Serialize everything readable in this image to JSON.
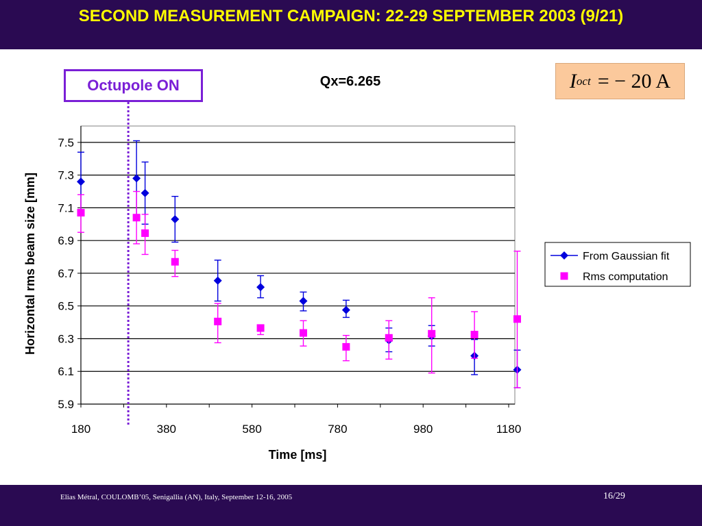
{
  "slide": {
    "title": "SECOND MEASUREMENT CAMPAIGN: 22-29 SEPTEMBER 2003 (9/21)",
    "footer": "Elias Métral, COULOMB’05, Senigallia (AN), Italy, September 12-16, 2005",
    "page": "16/29"
  },
  "annotation": {
    "label": "Octupole ON",
    "color": "#7a1fd6",
    "time_ms": 310
  },
  "formula": {
    "symbol": "I",
    "subscript": "oct",
    "rhs": "= − 20 A"
  },
  "chart_data": {
    "type": "scatter",
    "title": "Qx=6.265",
    "xlabel": "Time [ms]",
    "ylabel": "Horizontal rms beam size [mm]",
    "xlim": [
      180,
      1200
    ],
    "ylim": [
      5.9,
      7.6
    ],
    "xticks": [
      180,
      380,
      580,
      780,
      980,
      1180
    ],
    "yticks": [
      5.9,
      6.1,
      6.3,
      6.5,
      6.7,
      6.9,
      7.1,
      7.3,
      7.5
    ],
    "grid": "horizontal",
    "legend_position": "right",
    "series": [
      {
        "name": "From Gaussian fit",
        "color": "#0000dd",
        "marker": "diamond",
        "points": [
          {
            "x": 180,
            "y": 7.26,
            "lo": 7.08,
            "hi": 7.44
          },
          {
            "x": 310,
            "y": 7.28,
            "lo": 7.04,
            "hi": 7.51
          },
          {
            "x": 330,
            "y": 7.19,
            "lo": 7.0,
            "hi": 7.38
          },
          {
            "x": 400,
            "y": 7.03,
            "lo": 6.89,
            "hi": 7.17
          },
          {
            "x": 500,
            "y": 6.655,
            "lo": 6.53,
            "hi": 6.78
          },
          {
            "x": 600,
            "y": 6.615,
            "lo": 6.55,
            "hi": 6.685
          },
          {
            "x": 700,
            "y": 6.53,
            "lo": 6.47,
            "hi": 6.585
          },
          {
            "x": 800,
            "y": 6.475,
            "lo": 6.43,
            "hi": 6.535
          },
          {
            "x": 900,
            "y": 6.29,
            "lo": 6.22,
            "hi": 6.365
          },
          {
            "x": 1000,
            "y": 6.315,
            "lo": 6.255,
            "hi": 6.38
          },
          {
            "x": 1100,
            "y": 6.195,
            "lo": 6.08,
            "hi": 6.295
          },
          {
            "x": 1200,
            "y": 6.11,
            "lo": 6.0,
            "hi": 6.23
          }
        ]
      },
      {
        "name": "Rms computation",
        "color": "#ff00ff",
        "marker": "square",
        "points": [
          {
            "x": 180,
            "y": 7.07,
            "lo": 6.95,
            "hi": 7.18
          },
          {
            "x": 310,
            "y": 7.04,
            "lo": 6.88,
            "hi": 7.2
          },
          {
            "x": 330,
            "y": 6.945,
            "lo": 6.815,
            "hi": 7.06
          },
          {
            "x": 400,
            "y": 6.77,
            "lo": 6.68,
            "hi": 6.84
          },
          {
            "x": 500,
            "y": 6.405,
            "lo": 6.275,
            "hi": 6.515
          },
          {
            "x": 600,
            "y": 6.365,
            "lo": 6.325,
            "hi": 6.385
          },
          {
            "x": 700,
            "y": 6.335,
            "lo": 6.255,
            "hi": 6.41
          },
          {
            "x": 800,
            "y": 6.25,
            "lo": 6.165,
            "hi": 6.32
          },
          {
            "x": 900,
            "y": 6.305,
            "lo": 6.175,
            "hi": 6.41
          },
          {
            "x": 1000,
            "y": 6.33,
            "lo": 6.09,
            "hi": 6.55
          },
          {
            "x": 1100,
            "y": 6.325,
            "lo": 6.18,
            "hi": 6.465
          },
          {
            "x": 1200,
            "y": 6.42,
            "lo": 6.0,
            "hi": 6.835
          }
        ]
      }
    ]
  }
}
